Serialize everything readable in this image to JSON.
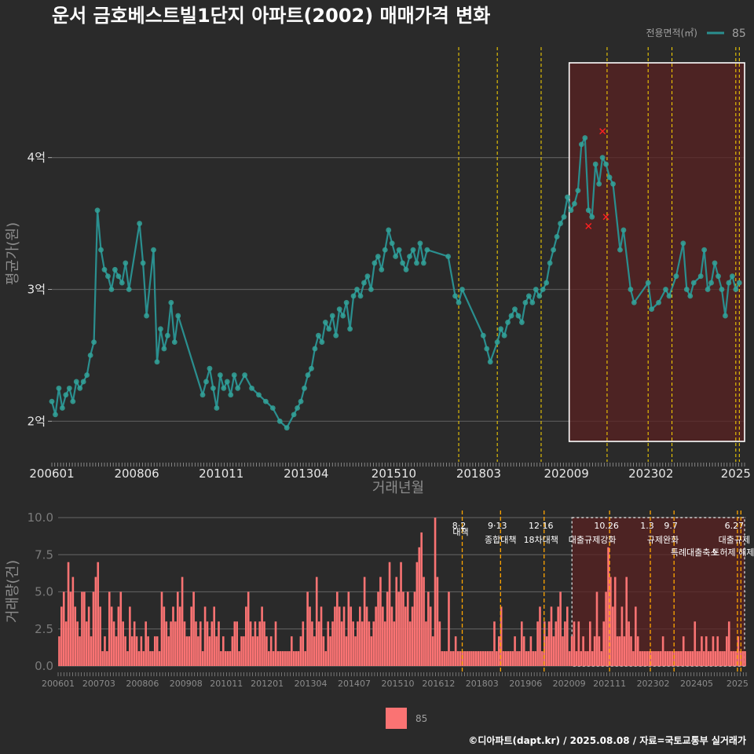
{
  "title": "운서 금호베스트빌1단지 아파트(2002) 매매가격 변화",
  "legend": {
    "title": "전용면적(㎡)",
    "label": "85"
  },
  "bottom_legend_label": "85",
  "caption": "©디아파트(dapt.kr) / 2025.08.08 / 자료=국토교통부 실거래가",
  "colors": {
    "line": "#2a8f8f",
    "point": "#33a39a",
    "bar": "#fa7373",
    "vline": "#ffd700",
    "highlight": "#5a2222",
    "cancel": "#ff2020"
  },
  "chart_data": [
    {
      "type": "line",
      "title": "운서 금호베스트빌1단지 아파트(2002) 매매가격 변화",
      "xlabel": "거래년월",
      "ylabel": "평균가(원)",
      "x_range": [
        2006.0,
        2025.75
      ],
      "ylim": [
        1.68,
        4.85
      ],
      "y_ticks": [
        {
          "value": 2,
          "label": "2억"
        },
        {
          "value": 3,
          "label": "3억"
        },
        {
          "value": 4,
          "label": "4억"
        }
      ],
      "x_ticks": [
        {
          "value": 2006.0,
          "label": "200601"
        },
        {
          "value": 2008.42,
          "label": "200806"
        },
        {
          "value": 2010.83,
          "label": "201011"
        },
        {
          "value": 2013.25,
          "label": "201304"
        },
        {
          "value": 2015.75,
          "label": "201510"
        },
        {
          "value": 2018.17,
          "label": "201803"
        },
        {
          "value": 2020.67,
          "label": "202009"
        },
        {
          "value": 2023.08,
          "label": "202302"
        },
        {
          "value": 2025.5,
          "label": "2025"
        }
      ],
      "series": [
        {
          "name": "85",
          "x": [
            2006.0,
            2006.1,
            2006.2,
            2006.3,
            2006.4,
            2006.5,
            2006.6,
            2006.7,
            2006.8,
            2006.9,
            2007.0,
            2007.1,
            2007.2,
            2007.3,
            2007.4,
            2007.5,
            2007.6,
            2007.7,
            2007.8,
            2007.9,
            2008.0,
            2008.1,
            2008.2,
            2008.5,
            2008.6,
            2008.7,
            2008.9,
            2009.0,
            2009.1,
            2009.2,
            2009.3,
            2009.4,
            2009.5,
            2009.6,
            2010.3,
            2010.4,
            2010.5,
            2010.6,
            2010.7,
            2010.8,
            2010.9,
            2011.0,
            2011.1,
            2011.2,
            2011.3,
            2011.5,
            2011.7,
            2011.9,
            2012.1,
            2012.3,
            2012.5,
            2012.7,
            2012.9,
            2013.0,
            2013.1,
            2013.2,
            2013.3,
            2013.4,
            2013.5,
            2013.6,
            2013.7,
            2013.8,
            2013.9,
            2014.0,
            2014.1,
            2014.2,
            2014.3,
            2014.4,
            2014.5,
            2014.6,
            2014.7,
            2014.8,
            2014.9,
            2015.0,
            2015.1,
            2015.2,
            2015.3,
            2015.4,
            2015.5,
            2015.6,
            2015.7,
            2015.8,
            2015.9,
            2016.0,
            2016.1,
            2016.2,
            2016.3,
            2016.4,
            2016.5,
            2016.6,
            2016.7,
            2017.3,
            2017.5,
            2017.6,
            2017.7,
            2018.3,
            2018.4,
            2018.5,
            2018.7,
            2018.8,
            2018.9,
            2019.0,
            2019.1,
            2019.2,
            2019.3,
            2019.4,
            2019.5,
            2019.6,
            2019.7,
            2019.8,
            2019.9,
            2020.0,
            2020.1,
            2020.2,
            2020.3,
            2020.4,
            2020.5,
            2020.6,
            2020.7,
            2020.8,
            2020.9,
            2021.0,
            2021.1,
            2021.2,
            2021.3,
            2021.4,
            2021.5,
            2021.6,
            2021.7,
            2021.8,
            2021.9,
            2022.0,
            2022.2,
            2022.3,
            2022.5,
            2022.6,
            2023.0,
            2023.1,
            2023.3,
            2023.5,
            2023.6,
            2023.8,
            2024.0,
            2024.1,
            2024.2,
            2024.3,
            2024.5,
            2024.6,
            2024.7,
            2024.8,
            2024.9,
            2025.0,
            2025.1,
            2025.2,
            2025.3,
            2025.4,
            2025.5,
            2025.6
          ],
          "values": [
            2.15,
            2.05,
            2.25,
            2.1,
            2.2,
            2.25,
            2.15,
            2.3,
            2.25,
            2.3,
            2.35,
            2.5,
            2.6,
            3.6,
            3.3,
            3.15,
            3.1,
            3.0,
            3.15,
            3.1,
            3.05,
            3.2,
            3.0,
            3.5,
            3.2,
            2.8,
            3.3,
            2.45,
            2.7,
            2.55,
            2.65,
            2.9,
            2.6,
            2.8,
            2.2,
            2.3,
            2.4,
            2.25,
            2.1,
            2.35,
            2.25,
            2.3,
            2.2,
            2.35,
            2.25,
            2.35,
            2.25,
            2.2,
            2.15,
            2.1,
            2.0,
            1.95,
            2.05,
            2.1,
            2.15,
            2.25,
            2.35,
            2.4,
            2.55,
            2.65,
            2.6,
            2.75,
            2.7,
            2.8,
            2.65,
            2.85,
            2.8,
            2.9,
            2.7,
            2.95,
            3.0,
            2.95,
            3.05,
            3.1,
            3.0,
            3.2,
            3.25,
            3.15,
            3.3,
            3.45,
            3.35,
            3.25,
            3.3,
            3.2,
            3.15,
            3.25,
            3.3,
            3.2,
            3.35,
            3.2,
            3.3,
            3.25,
            2.95,
            2.9,
            3.0,
            2.65,
            2.55,
            2.45,
            2.6,
            2.7,
            2.65,
            2.75,
            2.8,
            2.85,
            2.8,
            2.75,
            2.9,
            2.95,
            2.9,
            3.0,
            2.95,
            3.0,
            3.05,
            3.2,
            3.3,
            3.4,
            3.5,
            3.55,
            3.7,
            3.6,
            3.65,
            3.75,
            4.1,
            4.15,
            3.6,
            3.55,
            3.95,
            3.8,
            4.0,
            3.95,
            3.85,
            3.8,
            3.3,
            3.45,
            3.0,
            2.9,
            3.05,
            2.85,
            2.9,
            3.0,
            2.95,
            3.1,
            3.35,
            3.0,
            2.95,
            3.05,
            3.1,
            3.3,
            3.0,
            3.05,
            3.2,
            3.1,
            3.0,
            2.8,
            3.05,
            3.1,
            3.0,
            3.05
          ]
        }
      ],
      "cancelled": [
        {
          "x": 2021.3,
          "y": 3.48
        },
        {
          "x": 2021.7,
          "y": 4.2
        },
        {
          "x": 2021.8,
          "y": 3.55
        }
      ],
      "highlight_range": [
        2020.75,
        2025.75
      ]
    },
    {
      "type": "bar",
      "xlabel": "",
      "ylabel": "거래량(건)",
      "ylim": [
        0,
        10
      ],
      "y_ticks": [
        {
          "value": 0,
          "label": "0.0"
        },
        {
          "value": 2.5,
          "label": "2.5"
        },
        {
          "value": 5,
          "label": "5.0"
        },
        {
          "value": 7.5,
          "label": "7.5"
        },
        {
          "value": 10,
          "label": "10.0"
        }
      ],
      "x_ticks": [
        {
          "value": 2006.0,
          "label": "200601"
        },
        {
          "value": 2007.17,
          "label": "200703"
        },
        {
          "value": 2008.42,
          "label": "200806"
        },
        {
          "value": 2009.67,
          "label": "200908"
        },
        {
          "value": 2010.83,
          "label": "201011"
        },
        {
          "value": 2012.0,
          "label": "201201"
        },
        {
          "value": 2013.25,
          "label": "201304"
        },
        {
          "value": 2014.5,
          "label": "201407"
        },
        {
          "value": 2015.75,
          "label": "201510"
        },
        {
          "value": 2016.92,
          "label": "201612"
        },
        {
          "value": 2018.17,
          "label": "201803"
        },
        {
          "value": 2019.42,
          "label": "201906"
        },
        {
          "value": 2020.67,
          "label": "202009"
        },
        {
          "value": 2021.83,
          "label": "202111"
        },
        {
          "value": 2023.08,
          "label": "202302"
        },
        {
          "value": 2024.33,
          "label": "202405"
        },
        {
          "value": 2025.5,
          "label": "2025"
        }
      ],
      "series": [
        {
          "name": "85",
          "values": [
            2,
            4,
            5,
            3,
            7,
            5,
            6,
            4,
            3,
            2,
            5,
            5,
            3,
            4,
            2,
            5,
            6,
            7,
            4,
            1,
            2,
            1,
            5,
            4,
            3,
            2,
            4,
            5,
            3,
            2,
            1,
            4,
            2,
            3,
            2,
            1,
            2,
            1,
            3,
            2,
            1,
            1,
            2,
            2,
            1,
            5,
            4,
            3,
            2,
            3,
            4,
            3,
            5,
            4,
            6,
            3,
            2,
            2,
            4,
            5,
            3,
            2,
            3,
            1,
            4,
            3,
            2,
            3,
            4,
            2,
            3,
            1,
            2,
            1,
            1,
            1,
            2,
            3,
            3,
            1,
            2,
            2,
            4,
            5,
            3,
            2,
            3,
            2,
            3,
            4,
            3,
            2,
            1,
            2,
            1,
            3,
            1,
            1,
            1,
            1,
            1,
            1,
            2,
            1,
            1,
            1,
            2,
            3,
            1,
            5,
            4,
            3,
            2,
            6,
            3,
            4,
            2,
            1,
            3,
            2,
            3,
            4,
            5,
            4,
            3,
            4,
            2,
            5,
            4,
            3,
            2,
            3,
            4,
            3,
            6,
            4,
            3,
            2,
            3,
            4,
            5,
            6,
            4,
            3,
            5,
            7,
            4,
            3,
            6,
            5,
            7,
            5,
            4,
            5,
            3,
            4,
            5,
            7,
            8,
            9,
            6,
            3,
            5,
            4,
            2,
            10,
            6,
            3,
            1,
            1,
            1,
            5,
            1,
            1,
            2,
            1,
            1,
            1,
            1,
            1,
            1,
            1,
            1,
            1,
            1,
            1,
            1,
            1,
            1,
            1,
            1,
            3,
            1,
            2,
            4,
            1,
            1,
            1,
            1,
            1,
            2,
            1,
            1,
            3,
            2,
            1,
            1,
            2,
            1,
            1,
            3,
            4,
            1,
            3,
            2,
            3,
            4,
            2,
            3,
            4,
            5,
            2,
            3,
            4,
            1,
            2,
            3,
            1,
            3,
            1,
            2,
            1,
            1,
            3,
            1,
            2,
            5,
            2,
            1,
            3,
            5,
            8,
            6,
            4,
            6,
            2,
            2,
            4,
            2,
            6,
            3,
            2,
            1,
            4,
            2,
            1,
            1,
            1,
            1,
            1,
            1,
            1,
            1,
            1,
            1,
            2,
            1,
            1,
            1,
            1,
            1,
            1,
            1,
            1,
            2,
            1,
            1,
            1,
            1,
            3,
            1,
            1,
            2,
            1,
            2,
            1,
            1,
            2,
            1,
            2,
            1,
            1,
            1,
            2,
            3,
            1,
            1,
            1,
            2,
            1,
            1,
            1
          ]
        }
      ],
      "policies": [
        {
          "x": 2017.6,
          "date": "8·2",
          "name": "대책"
        },
        {
          "x": 2018.7,
          "date": "9·13",
          "name": "종합대책"
        },
        {
          "x": 2019.95,
          "date": "12·16",
          "name": "18차대책"
        },
        {
          "x": 2021.83,
          "date": "10.26",
          "name": "대출규제강화"
        },
        {
          "x": 2023.0,
          "date": "1.3",
          "name": "규제완화"
        },
        {
          "x": 2023.68,
          "date": "9.7",
          "name": "특례대출축소"
        },
        {
          "x": 2025.5,
          "date": "6.27",
          "name": "대출규제"
        },
        {
          "x": 2025.6,
          "date": "",
          "name": "토허제 해제"
        }
      ],
      "highlight_range": [
        2020.75,
        2025.75
      ]
    }
  ]
}
